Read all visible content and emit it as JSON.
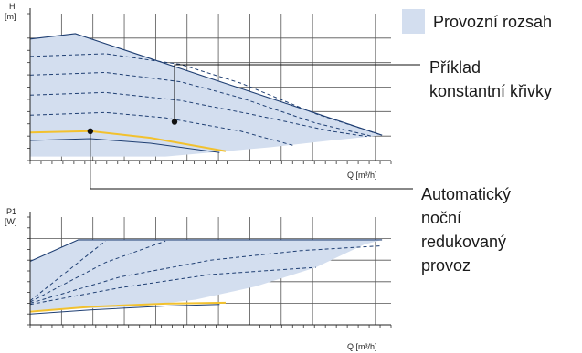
{
  "colors": {
    "range_fill": "#d3deef",
    "range_stroke": "#1f3f73",
    "grid": "#555555",
    "curve_dash": "#1f3f73",
    "night_curve": "#f2c12e"
  },
  "legend": {
    "operating_range": "Provozní rozsah",
    "example_curve_line1": "Příklad",
    "example_curve_line2": "konstantní křivky",
    "night_mode_line1": "Automatický",
    "night_mode_line2": "noční",
    "night_mode_line3": "redukovaný",
    "night_mode_line4": "provoz"
  },
  "chart_data": [
    {
      "type": "line",
      "title": "",
      "ylabel_line1": "H",
      "ylabel_line2": "[m]",
      "xlabel": "Q [m³/h]",
      "xlim": [
        0,
        12
      ],
      "ylim": [
        0,
        5.5
      ],
      "grid": true,
      "series": [
        {
          "role": "range-upper",
          "x": [
            0,
            1.5,
            11.7
          ],
          "y": [
            4.55,
            4.75,
            0.95
          ]
        },
        {
          "role": "range-lower",
          "x": [
            11.7,
            10,
            8,
            6,
            4.5
          ],
          "y": [
            0.95,
            0.75,
            0.5,
            0.3,
            0.15
          ]
        },
        {
          "role": "constant-curve",
          "x": [
            0,
            2.5,
            5,
            7,
            9.5,
            11.7
          ],
          "y": [
            3.9,
            4.0,
            3.6,
            2.9,
            1.75,
            0.95
          ]
        },
        {
          "role": "constant-curve",
          "x": [
            0,
            2.5,
            5,
            7,
            9.5,
            11.4
          ],
          "y": [
            3.2,
            3.3,
            2.95,
            2.35,
            1.4,
            0.9
          ]
        },
        {
          "role": "constant-curve",
          "x": [
            0,
            2.5,
            5,
            7.5,
            10,
            11.2
          ],
          "y": [
            2.45,
            2.55,
            2.25,
            1.7,
            1.1,
            0.9
          ]
        },
        {
          "role": "constant-curve",
          "x": [
            0,
            2.5,
            4.5,
            7,
            8.8
          ],
          "y": [
            1.7,
            1.8,
            1.6,
            1.1,
            0.55
          ]
        },
        {
          "role": "night-reduced",
          "x": [
            0,
            2,
            4,
            6.5
          ],
          "y": [
            1.05,
            1.1,
            0.85,
            0.35
          ]
        },
        {
          "role": "night-lower",
          "x": [
            0,
            2,
            4,
            6.3
          ],
          "y": [
            0.75,
            0.82,
            0.65,
            0.3
          ]
        }
      ],
      "markers": [
        {
          "role": "example-curve-point",
          "x": 4.8,
          "y": 1.45
        },
        {
          "role": "night-point",
          "x": 2.0,
          "y": 1.1
        }
      ]
    },
    {
      "type": "line",
      "title": "",
      "ylabel_line1": "P1",
      "ylabel_line2": "[W]",
      "xlabel": "Q [m³/h]",
      "xlim": [
        0,
        12
      ],
      "ylim": [
        0,
        4.5
      ],
      "grid": true,
      "series": [
        {
          "role": "range-upper",
          "x": [
            0,
            1.6,
            11.7
          ],
          "y": [
            2.65,
            3.55,
            3.55
          ]
        },
        {
          "role": "range-lower",
          "x": [
            11.1,
            9.5,
            7.5,
            5.5,
            3.5,
            0
          ],
          "y": [
            3.35,
            2.4,
            1.6,
            1.05,
            0.75,
            0.6
          ]
        },
        {
          "role": "constant-curve",
          "x": [
            0,
            2.5
          ],
          "y": [
            1.0,
            3.5
          ]
        },
        {
          "role": "constant-curve",
          "x": [
            0,
            2.5,
            4.5
          ],
          "y": [
            0.95,
            2.6,
            3.5
          ]
        },
        {
          "role": "constant-curve",
          "x": [
            0,
            3,
            6,
            9,
            11.7
          ],
          "y": [
            0.9,
            2.0,
            2.7,
            3.1,
            3.3
          ]
        },
        {
          "role": "constant-curve",
          "x": [
            0,
            3,
            6,
            9.5
          ],
          "y": [
            0.85,
            1.55,
            2.1,
            2.4
          ]
        },
        {
          "role": "night-reduced",
          "x": [
            0,
            2,
            4.5,
            6.5
          ],
          "y": [
            0.55,
            0.75,
            0.88,
            0.92
          ]
        },
        {
          "role": "night-lower",
          "x": [
            0,
            2,
            4.5,
            6.3
          ],
          "y": [
            0.45,
            0.62,
            0.78,
            0.85
          ]
        }
      ]
    }
  ]
}
